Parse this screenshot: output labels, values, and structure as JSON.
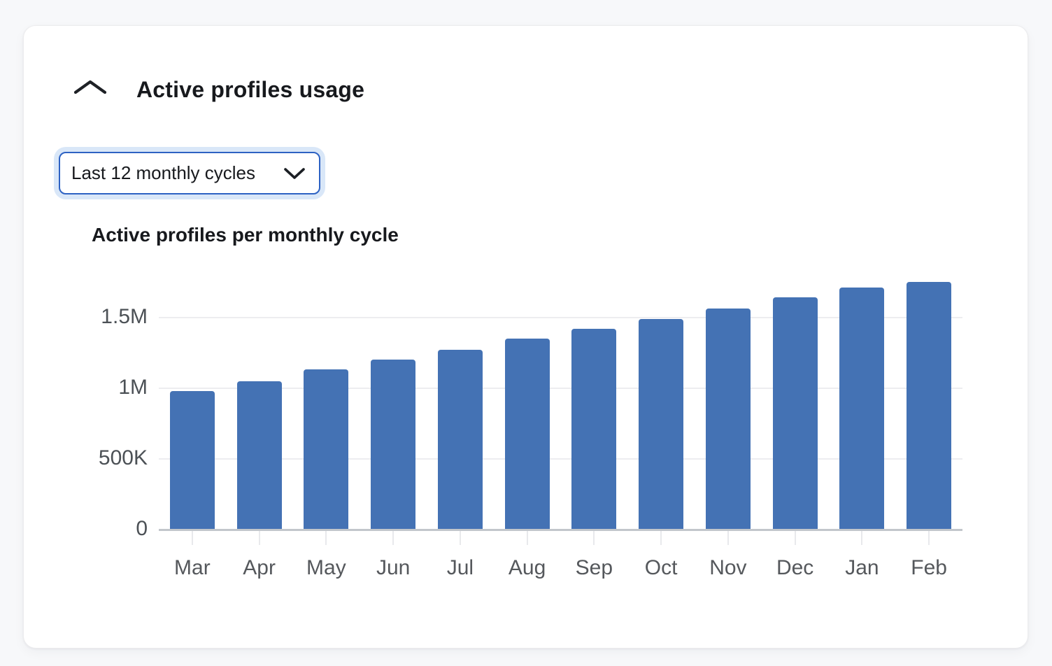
{
  "card": {
    "title": "Active profiles usage",
    "collapse_icon": "chevron-up-icon",
    "period_selector": {
      "value": "Last 12 monthly cycles",
      "icon": "chevron-down-icon"
    }
  },
  "chart_data": {
    "type": "bar",
    "title": "Active profiles per monthly cycle",
    "categories": [
      "Mar",
      "Apr",
      "May",
      "Jun",
      "Jul",
      "Aug",
      "Sep",
      "Oct",
      "Nov",
      "Dec",
      "Jan",
      "Feb"
    ],
    "values": [
      980000,
      1050000,
      1130000,
      1200000,
      1270000,
      1350000,
      1420000,
      1490000,
      1560000,
      1640000,
      1710000,
      1750000
    ],
    "series_name": "Active profiles",
    "xlabel": "",
    "ylabel": "",
    "ylim": [
      0,
      1760000
    ],
    "yticks": [
      {
        "value": 0,
        "label": "0"
      },
      {
        "value": 500000,
        "label": "500K"
      },
      {
        "value": 1000000,
        "label": "1M"
      },
      {
        "value": 1500000,
        "label": "1.5M"
      }
    ],
    "grid": "horizontal-only",
    "legend_position": "none",
    "bar_color": "#4472b4"
  },
  "colors": {
    "page_background": "#f7f8fa",
    "card_background": "#ffffff",
    "dropdown_border": "#2d62c3",
    "dropdown_focus_ring": "#d9e7f8",
    "gridline": "#ededf0",
    "axis_line": "#c2c6cb",
    "bar": "#4472b4",
    "title_text": "#17191d",
    "axis_label_text": "#55585c"
  }
}
